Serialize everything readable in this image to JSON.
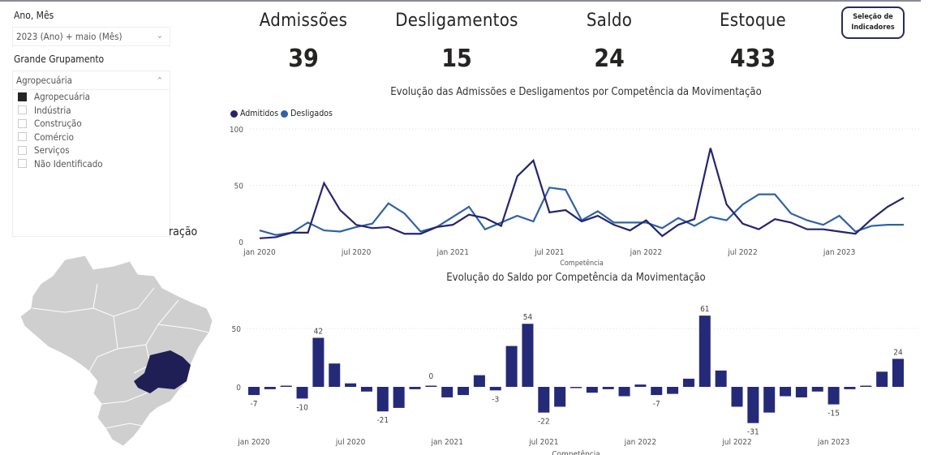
{
  "filters": {
    "period_label": "Ano, Mês",
    "period_value": "2023 (Ano) + maio (Mês)",
    "group_label": "Grande Grupamento",
    "group_value": "Agropecuária",
    "group_options": [
      {
        "label": "Agropecuária",
        "checked": true
      },
      {
        "label": "Indústria",
        "checked": false
      },
      {
        "label": "Construção",
        "checked": false
      },
      {
        "label": "Comércio",
        "checked": false
      },
      {
        "label": "Serviços",
        "checked": false
      },
      {
        "label": "Não Identificado",
        "checked": false
      }
    ]
  },
  "map_title_fragment": "ração",
  "kpis": [
    {
      "title": "Admissões",
      "value": "39"
    },
    {
      "title": "Desligamentos",
      "value": "15"
    },
    {
      "title": "Saldo",
      "value": "24"
    },
    {
      "title": "Estoque",
      "value": "433"
    }
  ],
  "indicator_button": "Seleção de Indicadores",
  "colors": {
    "admitidos": "#24246e",
    "desligados": "#2f62a6",
    "saldo": "#252a78",
    "map_base": "#cfcfcf",
    "map_highlight": "#1f1f55"
  },
  "chart_data": [
    {
      "type": "line",
      "title": "Evolução das Admissões e Desligamentos por Competência da Movimentação",
      "xlabel": "Competência",
      "x_ticks": [
        "jan 2020",
        "jul 2020",
        "jan 2021",
        "jul 2021",
        "jan 2022",
        "jul 2022",
        "jan 2023"
      ],
      "x_range": [
        "jan 2020",
        "mai 2023"
      ],
      "ylim": [
        0,
        100
      ],
      "y_ticks": [
        "0",
        "50",
        "100"
      ],
      "legend_position": "top-left",
      "grid": true,
      "series": [
        {
          "name": "Admitidos",
          "values": [
            3,
            4,
            8,
            8,
            52,
            28,
            15,
            12,
            13,
            7,
            7,
            13,
            15,
            24,
            21,
            14,
            58,
            72,
            26,
            28,
            18,
            23,
            15,
            10,
            19,
            5,
            15,
            20,
            83,
            33,
            16,
            11,
            20,
            17,
            11,
            11,
            9,
            7,
            20,
            31,
            39
          ]
        },
        {
          "name": "Desligados",
          "values": [
            10,
            6,
            8,
            17,
            10,
            9,
            13,
            16,
            34,
            25,
            9,
            13,
            22,
            31,
            11,
            17,
            23,
            18,
            48,
            46,
            19,
            27,
            17,
            17,
            17,
            12,
            21,
            14,
            22,
            19,
            33,
            42,
            42,
            25,
            19,
            15,
            23,
            9,
            14,
            15,
            15
          ]
        }
      ]
    },
    {
      "type": "bar",
      "title": "Evolução do Saldo por Competência da Movimentação",
      "xlabel": "Competência",
      "x_ticks": [
        "jan 2020",
        "jul 2020",
        "jan 2021",
        "jul 2021",
        "jan 2022",
        "jul 2022",
        "jan 2023"
      ],
      "y_ticks": [
        "0",
        "50"
      ],
      "ylim": [
        -35,
        65
      ],
      "grid": true,
      "values": [
        -7,
        -2,
        1,
        -10,
        42,
        20,
        3,
        -4,
        -21,
        -18,
        -2,
        0,
        -9,
        -7,
        10,
        -3,
        35,
        54,
        -22,
        -17,
        -1,
        -5,
        -2,
        -8,
        2,
        -7,
        -6,
        7,
        61,
        14,
        -17,
        -31,
        -22,
        -8,
        -9,
        -4,
        -15,
        -2,
        0,
        13,
        24
      ],
      "data_labels": {
        "0": "-7",
        "3": "-10",
        "4": "42",
        "8": "-21",
        "11": "0",
        "15": "-3",
        "17": "54",
        "18": "-22",
        "25": "-7",
        "28": "61",
        "31": "-31",
        "36": "-15",
        "40": "24"
      }
    }
  ]
}
